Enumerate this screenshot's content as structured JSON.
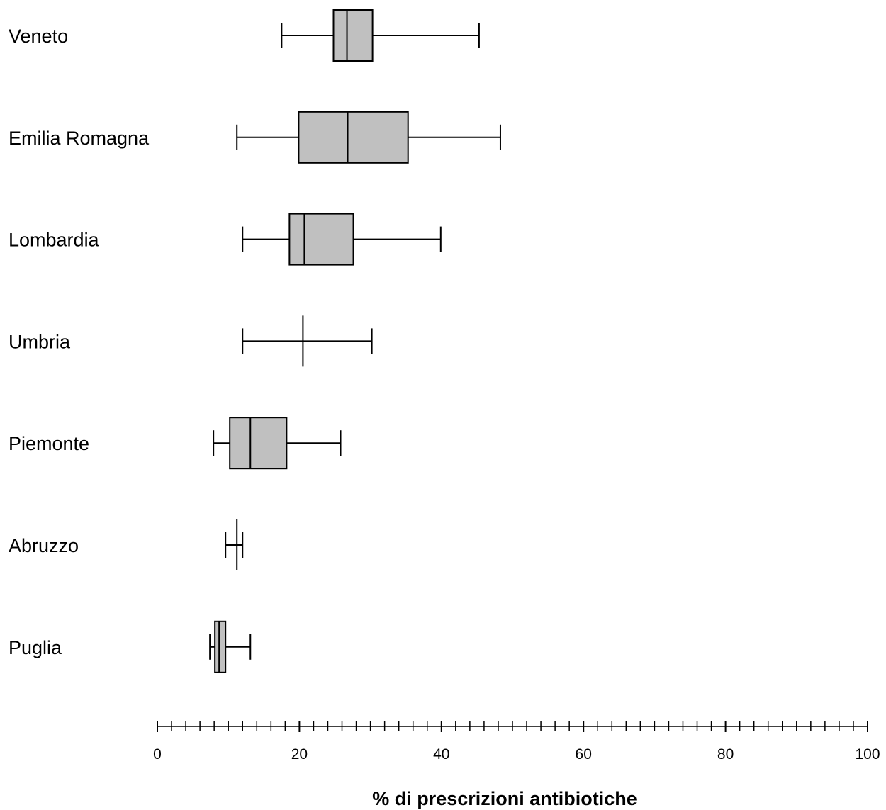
{
  "chart_data": {
    "type": "boxplot",
    "title": "",
    "xlabel": "% di prescrizioni antibiotiche",
    "ylabel": "",
    "xlim": [
      0,
      100
    ],
    "x_ticks": [
      0,
      20,
      40,
      60,
      80,
      100
    ],
    "x_tick_labels": [
      "0",
      "20",
      "40",
      "60",
      "80",
      "100"
    ],
    "minor_tick_step": 2,
    "grid": false,
    "legend": "none",
    "box_fill": "#c0c0c0",
    "line_color": "#000000",
    "categories": [
      "Veneto",
      "Emilia Romagna",
      "Lombardia",
      "Umbria",
      "Piemonte",
      "Abruzzo",
      "Puglia"
    ],
    "boxes": [
      {
        "label": "Veneto",
        "min": 17.5,
        "q1": 24.8,
        "median": 26.7,
        "q3": 30.3,
        "max": 45.3
      },
      {
        "label": "Emilia Romagna",
        "min": 11.2,
        "q1": 19.9,
        "median": 26.8,
        "q3": 35.3,
        "max": 48.3
      },
      {
        "label": "Lombardia",
        "min": 12.0,
        "q1": 18.6,
        "median": 20.7,
        "q3": 27.6,
        "max": 39.9
      },
      {
        "label": "Umbria",
        "min": 12.0,
        "q1": 20.5,
        "median": 20.5,
        "q3": 20.5,
        "max": 30.2
      },
      {
        "label": "Piemonte",
        "min": 7.9,
        "q1": 10.2,
        "median": 13.1,
        "q3": 18.2,
        "max": 25.8
      },
      {
        "label": "Abruzzo",
        "min": 9.6,
        "q1": 11.2,
        "median": 11.2,
        "q3": 11.2,
        "max": 12.0
      },
      {
        "label": "Puglia",
        "min": 7.4,
        "q1": 8.1,
        "median": 8.7,
        "q3": 9.6,
        "max": 13.1
      }
    ]
  }
}
